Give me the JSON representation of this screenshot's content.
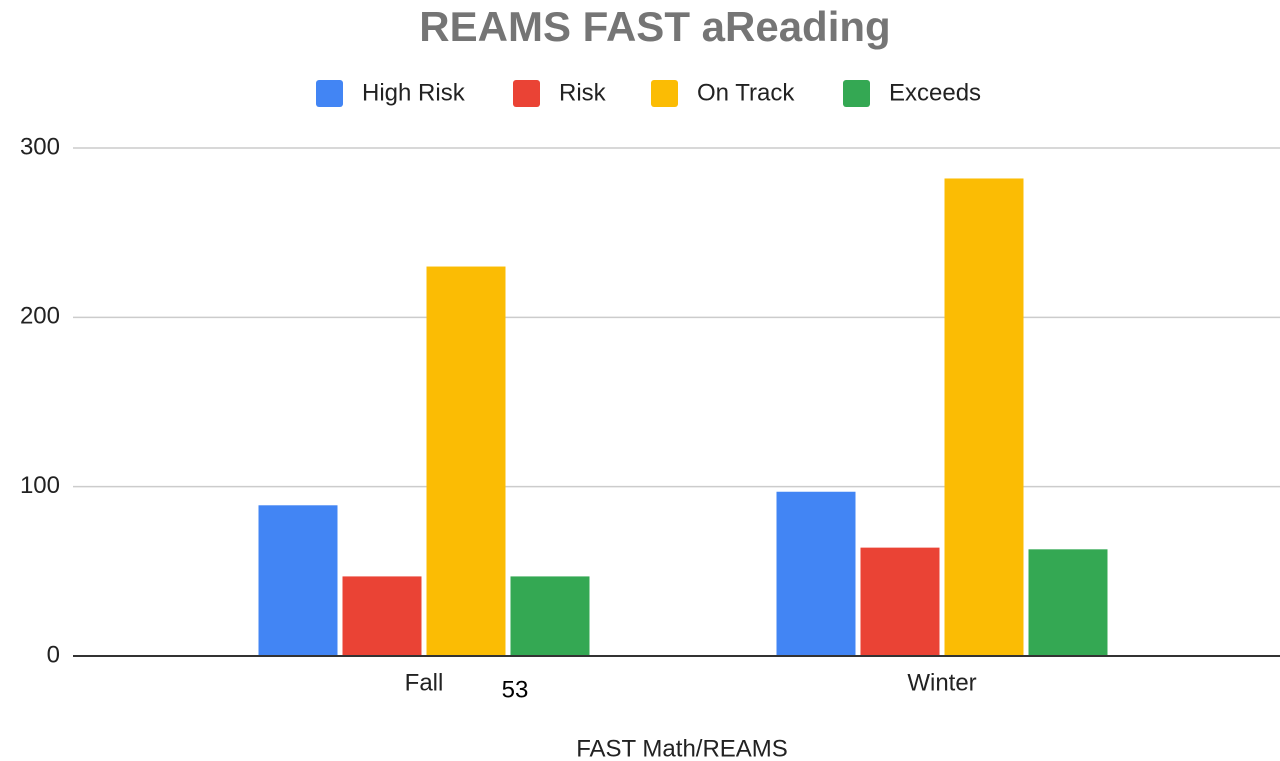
{
  "chart_data": {
    "type": "bar",
    "title": "REAMS FAST aReading",
    "categories": [
      "Fall",
      "Winter"
    ],
    "series": [
      {
        "name": "High Risk",
        "color": "#4285f4",
        "values": [
          89,
          97
        ]
      },
      {
        "name": "Risk",
        "color": "#ea4335",
        "values": [
          47,
          64
        ]
      },
      {
        "name": "On Track",
        "color": "#fbbc04",
        "values": [
          230,
          282
        ]
      },
      {
        "name": "Exceeds",
        "color": "#34a853",
        "values": [
          47,
          63
        ]
      }
    ],
    "ylim": [
      0,
      300
    ],
    "yticks": [
      0,
      100,
      200,
      300
    ],
    "grid": true,
    "xlabel": "FAST Math/REAMS",
    "annotation": "53",
    "legend": "top"
  }
}
